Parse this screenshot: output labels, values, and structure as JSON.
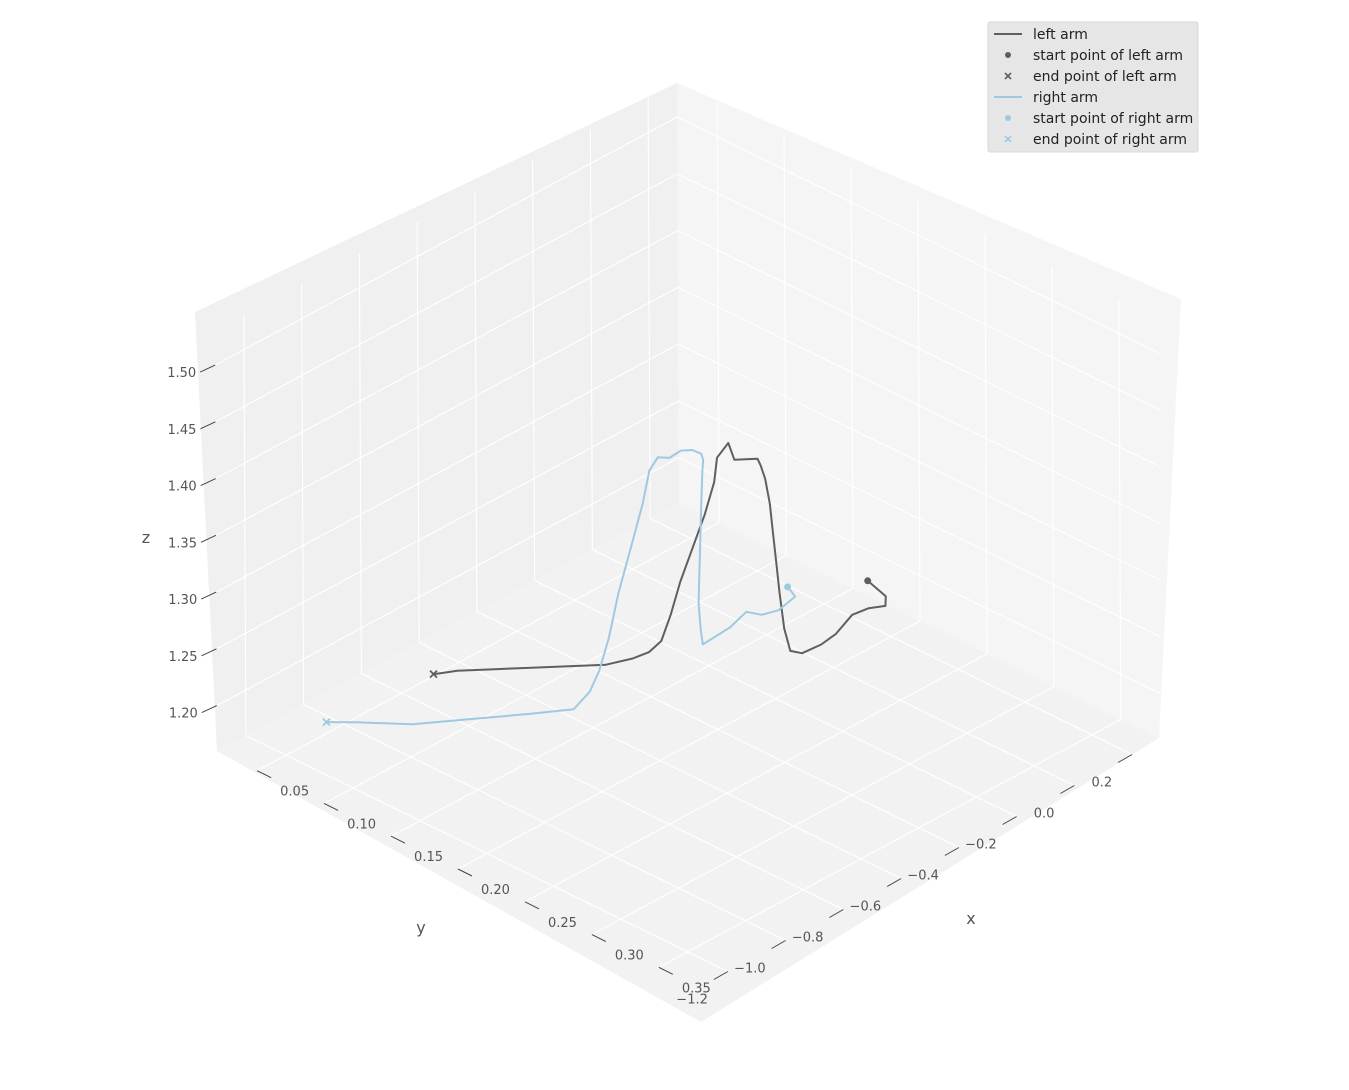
{
  "chart_data": {
    "type": "line3d",
    "legend": {
      "placement": "top-right",
      "entries": [
        {
          "label": "left arm",
          "kind": "line",
          "color": "#5f5f5f"
        },
        {
          "label": "start point of left arm",
          "kind": "dot",
          "color": "#5f5f5f"
        },
        {
          "label": "end point of left arm",
          "kind": "cross",
          "color": "#5f5f5f"
        },
        {
          "label": "right arm",
          "kind": "line",
          "color": "#9ecae1"
        },
        {
          "label": "start point of right arm",
          "kind": "dot",
          "color": "#9ecae1"
        },
        {
          "label": "end point of right arm",
          "kind": "cross",
          "color": "#9ecae1"
        }
      ]
    },
    "axes": {
      "x": {
        "label": "x",
        "range": [
          0.02,
          0.38
        ],
        "ticks": [
          0.05,
          0.1,
          0.15,
          0.2,
          0.25,
          0.3,
          0.35
        ],
        "tick_labels": [
          "0.05",
          "0.10",
          "0.15",
          "0.20",
          "0.25",
          "0.30",
          "0.35"
        ]
      },
      "y": {
        "label": "y",
        "range": [
          -1.3,
          0.3
        ],
        "ticks": [
          -1.2,
          -1.0,
          -0.8,
          -0.6,
          -0.4,
          -0.2,
          0.0,
          0.2
        ],
        "tick_labels": [
          "−1.2",
          "−1.0",
          "−0.8",
          "−0.6",
          "−0.4",
          "−0.2",
          "0.0",
          "0.2"
        ]
      },
      "z": {
        "label": "z",
        "range": [
          1.16,
          1.53
        ],
        "ticks": [
          1.2,
          1.25,
          1.3,
          1.35,
          1.4,
          1.45,
          1.5
        ],
        "tick_labels": [
          "1.20",
          "1.25",
          "1.30",
          "1.35",
          "1.40",
          "1.45",
          "1.50"
        ]
      }
    },
    "grid": true,
    "series": [
      {
        "name": "left arm",
        "color": "#5f5f5f",
        "points": [
          [
            0.2,
            0.12,
            1.22
          ],
          [
            0.22,
            0.09,
            1.222
          ],
          [
            0.25,
            -0.05,
            1.25
          ],
          [
            0.27,
            -0.2,
            1.28
          ],
          [
            0.275,
            -0.28,
            1.288
          ],
          [
            0.28,
            -0.36,
            1.285
          ],
          [
            0.282,
            -0.42,
            1.285
          ],
          [
            0.285,
            -0.5,
            1.29
          ],
          [
            0.287,
            -0.55,
            1.3
          ],
          [
            0.289,
            -0.58,
            1.325
          ],
          [
            0.29,
            -0.6,
            1.36
          ],
          [
            0.292,
            -0.62,
            1.39
          ],
          [
            0.294,
            -0.64,
            1.42
          ],
          [
            0.296,
            -0.66,
            1.45
          ],
          [
            0.297,
            -0.68,
            1.475
          ],
          [
            0.298,
            -0.7,
            1.49
          ],
          [
            0.3,
            -0.72,
            1.5
          ],
          [
            0.3,
            -0.76,
            1.505
          ],
          [
            0.3,
            -0.8,
            1.51
          ],
          [
            0.302,
            -0.83,
            1.53
          ],
          [
            0.3,
            -0.86,
            1.52
          ],
          [
            0.3,
            -0.87,
            1.5
          ],
          [
            0.295,
            -0.88,
            1.47
          ],
          [
            0.29,
            -0.9,
            1.44
          ],
          [
            0.285,
            -0.92,
            1.41
          ],
          [
            0.28,
            -0.93,
            1.38
          ],
          [
            0.275,
            -0.94,
            1.355
          ],
          [
            0.27,
            -0.96,
            1.345
          ],
          [
            0.26,
            -0.97,
            1.335
          ],
          [
            0.24,
            -0.97,
            1.318
          ],
          [
            0.21,
            -0.96,
            1.298
          ],
          [
            0.18,
            -0.95,
            1.278
          ],
          [
            0.15,
            -0.94,
            1.258
          ],
          [
            0.12,
            -0.93,
            1.238
          ],
          [
            0.1,
            -0.92,
            1.222
          ]
        ]
      },
      {
        "name": "right arm",
        "color": "#9ecae1",
        "points": [
          [
            0.14,
            0.12,
            1.18
          ],
          [
            0.15,
            0.1,
            1.18
          ],
          [
            0.17,
            -0.05,
            1.2
          ],
          [
            0.19,
            -0.2,
            1.228
          ],
          [
            0.2,
            -0.3,
            1.25
          ],
          [
            0.205,
            -0.38,
            1.25
          ],
          [
            0.21,
            -0.45,
            1.255
          ],
          [
            0.215,
            -0.52,
            1.26
          ],
          [
            0.22,
            -0.55,
            1.28
          ],
          [
            0.225,
            -0.58,
            1.31
          ],
          [
            0.23,
            -0.6,
            1.34
          ],
          [
            0.235,
            -0.62,
            1.37
          ],
          [
            0.24,
            -0.64,
            1.4
          ],
          [
            0.245,
            -0.66,
            1.43
          ],
          [
            0.25,
            -0.68,
            1.455
          ],
          [
            0.255,
            -0.7,
            1.47
          ],
          [
            0.258,
            -0.72,
            1.48
          ],
          [
            0.26,
            -0.76,
            1.49
          ],
          [
            0.26,
            -0.8,
            1.495
          ],
          [
            0.26,
            -0.84,
            1.494
          ],
          [
            0.26,
            -0.88,
            1.5
          ],
          [
            0.258,
            -0.9,
            1.49
          ],
          [
            0.255,
            -0.91,
            1.46
          ],
          [
            0.25,
            -0.93,
            1.42
          ],
          [
            0.245,
            -0.95,
            1.38
          ],
          [
            0.24,
            -0.96,
            1.34
          ],
          [
            0.235,
            -0.97,
            1.31
          ],
          [
            0.23,
            -0.98,
            1.29
          ],
          [
            0.22,
            -0.99,
            1.27
          ],
          [
            0.19,
            -1.0,
            1.25
          ],
          [
            0.15,
            -1.02,
            1.225
          ],
          [
            0.11,
            -1.04,
            1.2
          ],
          [
            0.07,
            -1.05,
            1.18
          ],
          [
            0.05,
            -1.06,
            1.17
          ]
        ]
      }
    ]
  }
}
